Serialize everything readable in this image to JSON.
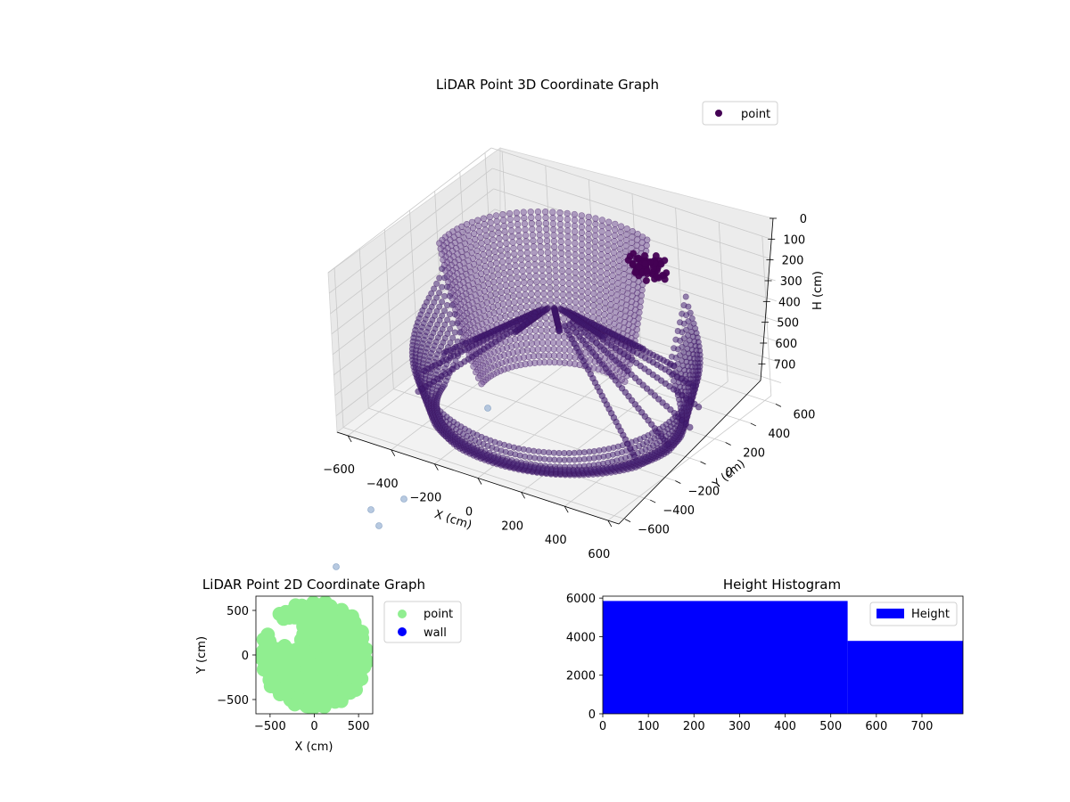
{
  "chart_data": [
    {
      "type": "scatter3d",
      "title": "LiDAR Point 3D Coordinate Graph",
      "xlabel": "X (cm)",
      "ylabel": "Y (cm)",
      "zlabel": "H (cm)",
      "xticks": [
        "−600",
        "−400",
        "−200",
        "0",
        "200",
        "400",
        "600"
      ],
      "yticks": [
        "−600",
        "−400",
        "−200",
        "0",
        "200",
        "400",
        "600"
      ],
      "zticks": [
        "0",
        "100",
        "200",
        "300",
        "400",
        "500",
        "600",
        "700"
      ],
      "xlim": [
        -650,
        650
      ],
      "ylim": [
        -650,
        650
      ],
      "zlim": [
        0,
        780
      ],
      "z_inverted": true,
      "grid": true,
      "legend_position": "top-right",
      "series": [
        {
          "name": "point",
          "color": "#440154",
          "shape": "bowl of concentric height rings with radial spokes"
        }
      ]
    },
    {
      "type": "scatter",
      "title": "LiDAR Point 2D Coordinate Graph",
      "xlabel": "X (cm)",
      "ylabel": "Y (cm)",
      "xticks": [
        "−500",
        "0",
        "500"
      ],
      "yticks": [
        "−500",
        "0",
        "500"
      ],
      "xlim": [
        -660,
        660
      ],
      "ylim": [
        -660,
        660
      ],
      "legend_position": "outside-right",
      "series": [
        {
          "name": "point",
          "color": "#90ee90"
        },
        {
          "name": "wall",
          "color": "#0000ff"
        }
      ]
    },
    {
      "type": "bar",
      "title": "Height Histogram",
      "xticks": [
        "0",
        "100",
        "200",
        "300",
        "400",
        "500",
        "600",
        "700"
      ],
      "yticks": [
        "0",
        "2000",
        "4000",
        "6000"
      ],
      "xlim": [
        0,
        790
      ],
      "ylim": [
        0,
        6100
      ],
      "legend_position": "top-right",
      "series": [
        {
          "name": "Height",
          "color": "#0000ff",
          "bins": [
            {
              "x0": 0,
              "x1": 537,
              "value": 5850
            },
            {
              "x0": 537,
              "x1": 790,
              "value": 3780
            }
          ]
        }
      ]
    }
  ]
}
